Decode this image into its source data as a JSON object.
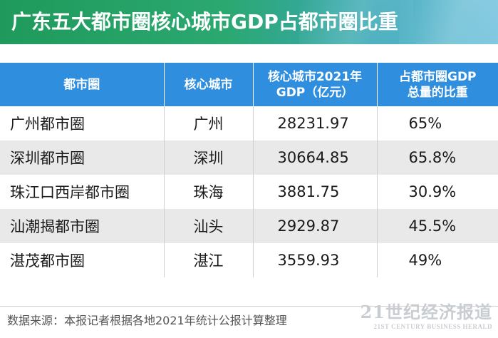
{
  "title": "广东五大都市圈核心城市GDP占都市圈比重",
  "chart_data": {
    "type": "table",
    "columns": [
      "都市圈",
      "核心城市",
      "核心城市2021年GDP（亿元）",
      "占都市圈GDP总量的比重"
    ],
    "header_lines": [
      [
        "都市圈"
      ],
      [
        "核心城市"
      ],
      [
        "核心城市2021年",
        "GDP（亿元）"
      ],
      [
        "占都市圈GDP",
        "总量的比重"
      ]
    ],
    "rows": [
      {
        "region": "广州都市圈",
        "city": "广州",
        "gdp": "28231.97",
        "share": "65%"
      },
      {
        "region": "深圳都市圈",
        "city": "深圳",
        "gdp": "30664.85",
        "share": "65.8%"
      },
      {
        "region": "珠江口西岸都市圈",
        "city": "珠海",
        "gdp": "3881.75",
        "share": "30.9%"
      },
      {
        "region": "汕潮揭都市圈",
        "city": "汕头",
        "gdp": "2929.87",
        "share": "45.5%"
      },
      {
        "region": "湛茂都市圈",
        "city": "湛江",
        "gdp": "3559.93",
        "share": "49%"
      }
    ]
  },
  "source": "数据来源：本报记者根据各地2021年统计公报计算整理",
  "watermark": {
    "cn": "21世纪经济报道",
    "en": "21ST CENTURY BUSINESS HERALD"
  },
  "colors": {
    "title_bar": "#2ba870",
    "header": "#2f8ede",
    "alt_row": "#e9e9e9"
  }
}
